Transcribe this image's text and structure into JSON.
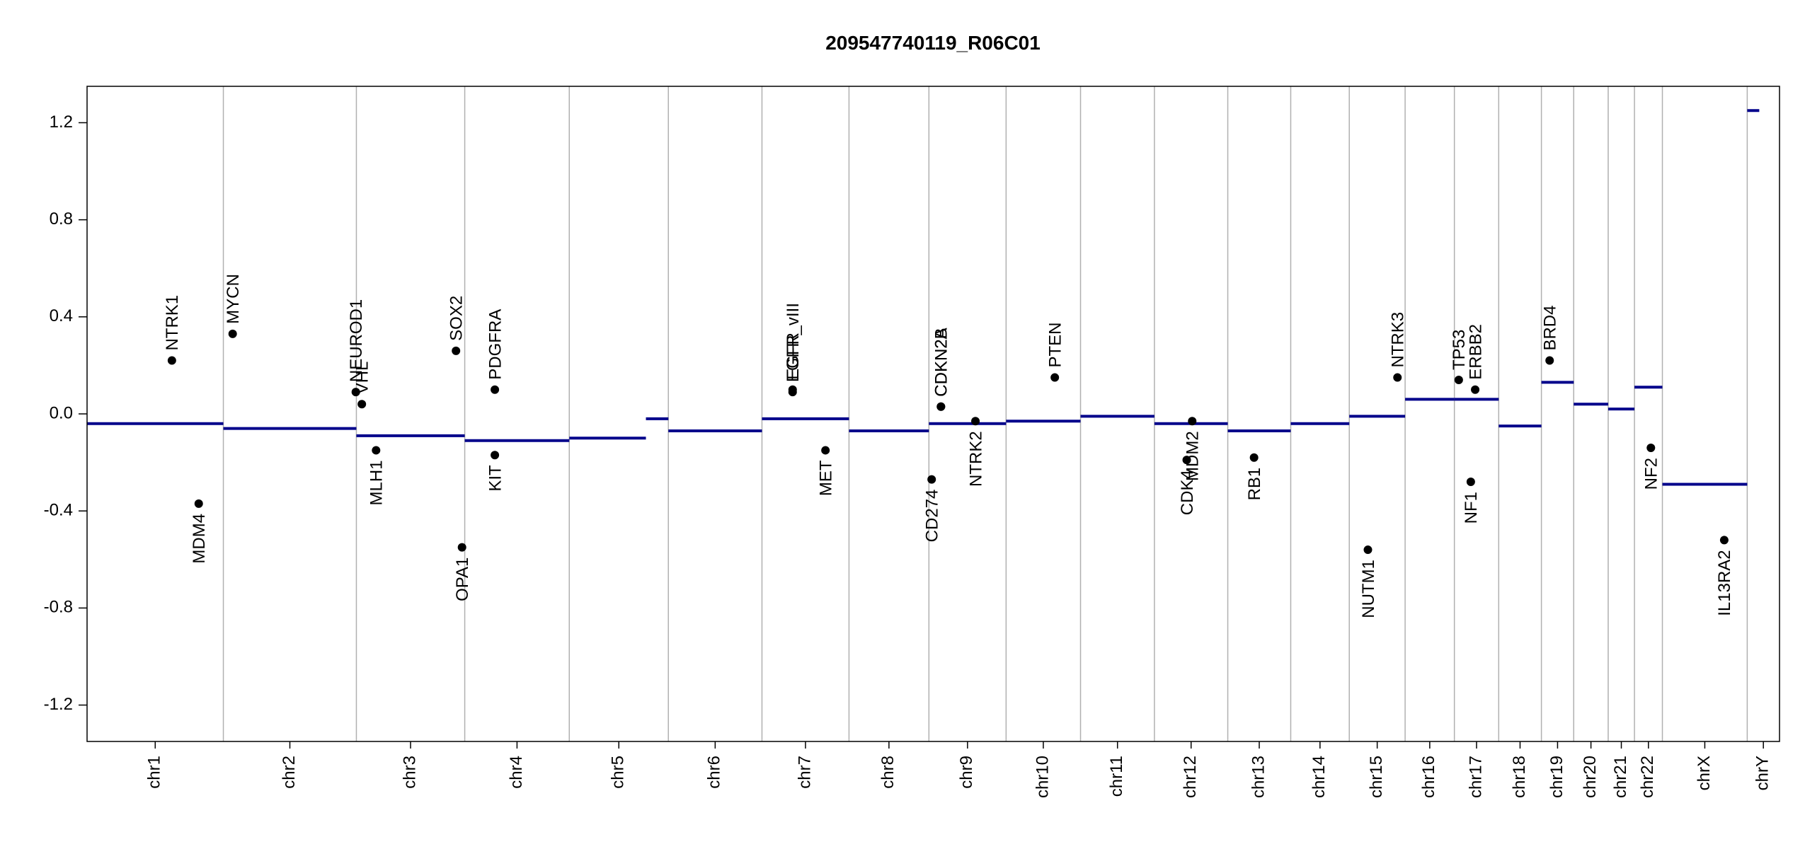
{
  "chart_data": {
    "type": "cnv",
    "title": "209547740119_R06C01",
    "categories": [
      "chr1",
      "chr2",
      "chr3",
      "chr4",
      "chr5",
      "chr6",
      "chr7",
      "chr8",
      "chr9",
      "chr10",
      "chr11",
      "chr12",
      "chr13",
      "chr14",
      "chr15",
      "chr16",
      "chr17",
      "chr18",
      "chr19",
      "chr20",
      "chr21",
      "chr22",
      "chrX",
      "chrY"
    ],
    "bounds": [
      0,
      249,
      492,
      690,
      881,
      1062,
      1233,
      1392,
      1538,
      1679,
      1815,
      1950,
      2084,
      2199,
      2306,
      2408,
      2498,
      2579,
      2657,
      2716,
      2779,
      2827,
      2878,
      3033,
      3092
    ],
    "xlim": [
      0,
      3092
    ],
    "ylim": [
      -1.35,
      1.35
    ],
    "yticks": [
      -1.2,
      -0.8,
      -0.4,
      {
        "value": 0,
        "label": "0.0"
      },
      0.4,
      0.8,
      1.2
    ],
    "segment_color": "#00008b",
    "point_color": "#000000",
    "segments": {
      "start": [
        0,
        249,
        492,
        690,
        881,
        1021,
        1062,
        1233,
        1392,
        1538,
        1679,
        1815,
        1950,
        2084,
        2199,
        2306,
        2408,
        2498,
        2579,
        2657,
        2716,
        2779,
        2827,
        2878,
        3033
      ],
      "end": [
        249,
        492,
        690,
        881,
        1021,
        1062,
        1233,
        1392,
        1538,
        1679,
        1815,
        1950,
        2084,
        2199,
        2306,
        2408,
        2498,
        2579,
        2657,
        2716,
        2779,
        2827,
        2878,
        3033,
        3055
      ],
      "values": [
        -0.04,
        -0.06,
        -0.09,
        -0.11,
        -0.1,
        -0.02,
        -0.07,
        -0.02,
        -0.07,
        -0.04,
        -0.03,
        -0.01,
        -0.04,
        -0.07,
        -0.04,
        -0.01,
        0.06,
        0.06,
        -0.05,
        0.13,
        0.04,
        0.02,
        0.11,
        -0.29,
        1.25
      ]
    },
    "genes": {
      "names": [
        "NTRK1",
        "MDM4",
        "MYCN",
        "NEUROD1",
        "VHL",
        "MLH1",
        "SOX2",
        "OPA1",
        "PDGFRA",
        "KIT",
        "EGFR",
        "EGFR_vIII",
        "MET",
        "CD274",
        "CDKN2A",
        "CDKN2B",
        "NTRK2",
        "PTEN",
        "CDK4",
        "MDM2",
        "RB1",
        "NUTM1",
        "NTRK3",
        "TP53",
        "ERBB2",
        "NF1",
        "BRD4",
        "NF2",
        "IL13RA2"
      ],
      "x": [
        155,
        204,
        266,
        491,
        502,
        528,
        674,
        685,
        745,
        745,
        1289,
        1289,
        1349,
        1543,
        1560,
        1560,
        1623,
        1768,
        2009,
        2019,
        2132,
        2340,
        2394,
        2506,
        2536,
        2528,
        2672,
        2857,
        2991
      ],
      "values": [
        0.22,
        -0.37,
        0.33,
        0.09,
        0.04,
        -0.15,
        0.26,
        -0.55,
        0.1,
        -0.17,
        0.1,
        0.09,
        -0.15,
        -0.27,
        0.03,
        0.03,
        -0.03,
        0.15,
        -0.19,
        -0.03,
        -0.18,
        -0.56,
        0.15,
        0.14,
        0.1,
        -0.28,
        0.22,
        -0.14,
        -0.52
      ],
      "label_side": [
        "above",
        "below",
        "above",
        "above",
        "above",
        "below",
        "above",
        "below",
        "above",
        "below",
        "above",
        "above",
        "below",
        "below",
        "above",
        "above",
        "below",
        "above",
        "below",
        "below",
        "below",
        "below",
        "above",
        "above",
        "above",
        "below",
        "above",
        "below",
        "below"
      ]
    }
  }
}
